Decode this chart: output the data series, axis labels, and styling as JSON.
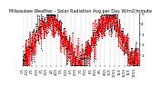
{
  "title": "Milwaukee Weather - Solar Radiation Avg per Day W/m2/minute",
  "title_fontsize": 3.5,
  "background_color": "#ffffff",
  "line_color": "#ff0000",
  "dot_color": "#000000",
  "ylim": [
    0,
    500
  ],
  "yticks": [
    100,
    200,
    300,
    400,
    500
  ],
  "ytick_labels": [
    "1",
    "2",
    "3",
    "4",
    "5"
  ],
  "ytick_fontsize": 3.0,
  "xtick_fontsize": 2.5,
  "grid_color": "#999999",
  "num_points": 730,
  "x_labels": [
    "1/1",
    "1/15",
    "2/1",
    "2/15",
    "3/1",
    "3/15",
    "4/1",
    "4/15",
    "5/1",
    "5/15",
    "6/1",
    "6/15",
    "7/1",
    "7/15",
    "8/1",
    "8/15",
    "9/1",
    "9/15",
    "10/1",
    "10/15",
    "11/1",
    "11/15",
    "12/1",
    "12/15"
  ],
  "vgrid_indices": [
    0,
    30,
    60,
    90,
    120,
    150,
    182,
    212,
    243,
    273,
    304,
    334,
    365,
    395,
    426,
    456,
    487,
    517,
    547,
    578,
    608,
    638,
    669,
    699
  ]
}
